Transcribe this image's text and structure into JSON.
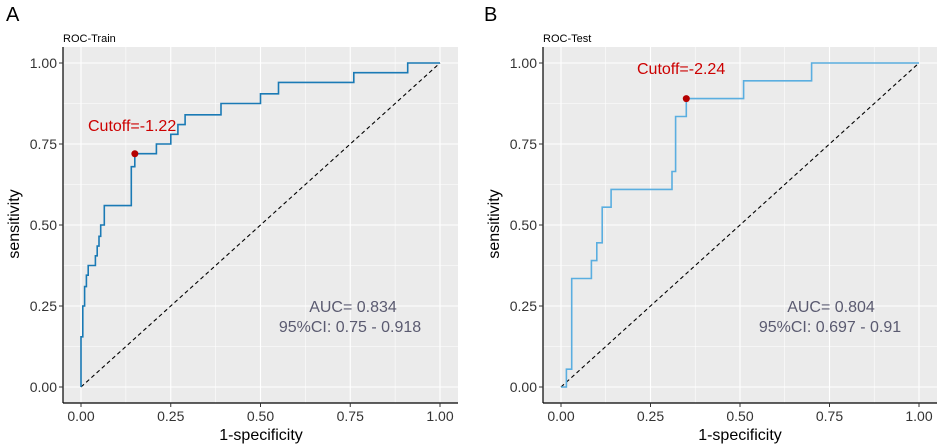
{
  "chart_data": [
    {
      "type": "line",
      "panel": "A",
      "title": "ROC-Train",
      "xlabel": "1-specificity",
      "ylabel": "sensitivity",
      "xlim": [
        0,
        1
      ],
      "ylim": [
        0,
        1
      ],
      "x_ticks": [
        "0.00",
        "0.25",
        "0.50",
        "0.75",
        "1.00"
      ],
      "y_ticks": [
        "0.00",
        "0.25",
        "0.50",
        "0.75",
        "1.00"
      ],
      "line_color": "#1a7ab5",
      "cutoff_label": "Cutoff=-1.22",
      "auc_text": "AUC= 0.834",
      "ci_text": "95%CI: 0.75 - 0.918",
      "cutoff_point": {
        "x": 0.15,
        "y": 0.72
      },
      "series": [
        {
          "name": "ROC",
          "x": [
            0,
            0,
            0.005,
            0.005,
            0.01,
            0.01,
            0.015,
            0.015,
            0.02,
            0.02,
            0.04,
            0.04,
            0.045,
            0.045,
            0.05,
            0.05,
            0.055,
            0.055,
            0.065,
            0.065,
            0.075,
            0.075,
            0.14,
            0.14,
            0.15,
            0.15,
            0.16,
            0.16,
            0.21,
            0.21,
            0.25,
            0.25,
            0.27,
            0.27,
            0.29,
            0.29,
            0.39,
            0.39,
            0.5,
            0.5,
            0.55,
            0.55,
            0.76,
            0.76,
            0.91,
            0.91,
            1.0
          ],
          "y": [
            0,
            0.155,
            0.155,
            0.25,
            0.25,
            0.31,
            0.31,
            0.345,
            0.345,
            0.375,
            0.375,
            0.405,
            0.405,
            0.435,
            0.435,
            0.465,
            0.465,
            0.5,
            0.5,
            0.56,
            0.56,
            0.56,
            0.56,
            0.68,
            0.68,
            0.72,
            0.72,
            0.72,
            0.72,
            0.75,
            0.75,
            0.78,
            0.78,
            0.81,
            0.81,
            0.84,
            0.84,
            0.875,
            0.875,
            0.905,
            0.905,
            0.94,
            0.94,
            0.97,
            0.97,
            1.0,
            1.0
          ]
        }
      ]
    },
    {
      "type": "line",
      "panel": "B",
      "title": "ROC-Test",
      "xlabel": "1-specificity",
      "ylabel": "sensitivity",
      "xlim": [
        0,
        1
      ],
      "ylim": [
        0,
        1
      ],
      "x_ticks": [
        "0.00",
        "0.25",
        "0.50",
        "0.75",
        "1.00"
      ],
      "y_ticks": [
        "0.00",
        "0.25",
        "0.50",
        "0.75",
        "1.00"
      ],
      "line_color": "#5aaee0",
      "cutoff_label": "Cutoff=-2.24",
      "auc_text": "AUC= 0.804",
      "ci_text": "95%CI: 0.697 - 0.91",
      "cutoff_point": {
        "x": 0.35,
        "y": 0.89
      },
      "series": [
        {
          "name": "ROC",
          "x": [
            0,
            0.015,
            0.015,
            0.03,
            0.03,
            0.085,
            0.085,
            0.1,
            0.1,
            0.115,
            0.115,
            0.14,
            0.14,
            0.31,
            0.31,
            0.32,
            0.32,
            0.35,
            0.35,
            0.51,
            0.51,
            0.7,
            0.7,
            1.0
          ],
          "y": [
            0,
            0,
            0.055,
            0.055,
            0.335,
            0.335,
            0.39,
            0.39,
            0.445,
            0.445,
            0.555,
            0.555,
            0.61,
            0.61,
            0.665,
            0.665,
            0.835,
            0.835,
            0.89,
            0.89,
            0.945,
            0.945,
            1.0,
            1.0
          ]
        }
      ]
    }
  ]
}
